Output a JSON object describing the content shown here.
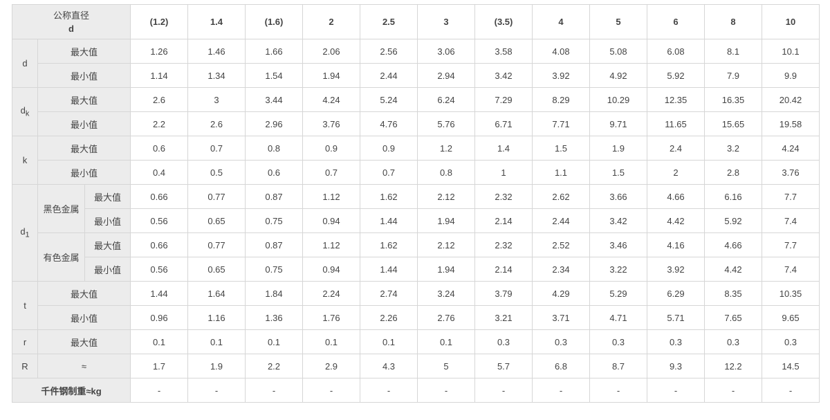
{
  "header": {
    "title": "公称直径",
    "symbol": "d",
    "sizes": [
      "(1.2)",
      "1.4",
      "(1.6)",
      "2",
      "2.5",
      "3",
      "(3.5)",
      "4",
      "5",
      "6",
      "8",
      "10"
    ]
  },
  "labels": {
    "max": "最大值",
    "min": "最小值",
    "approx": "≈",
    "ferrous": "黑色金属",
    "nonferrous": "有色金属",
    "mass": "千件钢制重≈kg",
    "dash": "-"
  },
  "params": {
    "d": "d",
    "dk_main": "d",
    "dk_sub": "k",
    "k": "k",
    "d1_main": "d",
    "d1_sub": "1",
    "t": "t",
    "r": "r",
    "R": "R"
  },
  "rows": {
    "d_max": [
      "1.26",
      "1.46",
      "1.66",
      "2.06",
      "2.56",
      "3.06",
      "3.58",
      "4.08",
      "5.08",
      "6.08",
      "8.1",
      "10.1"
    ],
    "d_min": [
      "1.14",
      "1.34",
      "1.54",
      "1.94",
      "2.44",
      "2.94",
      "3.42",
      "3.92",
      "4.92",
      "5.92",
      "7.9",
      "9.9"
    ],
    "dk_max": [
      "2.6",
      "3",
      "3.44",
      "4.24",
      "5.24",
      "6.24",
      "7.29",
      "8.29",
      "10.29",
      "12.35",
      "16.35",
      "20.42"
    ],
    "dk_min": [
      "2.2",
      "2.6",
      "2.96",
      "3.76",
      "4.76",
      "5.76",
      "6.71",
      "7.71",
      "9.71",
      "11.65",
      "15.65",
      "19.58"
    ],
    "k_max": [
      "0.6",
      "0.7",
      "0.8",
      "0.9",
      "0.9",
      "1.2",
      "1.4",
      "1.5",
      "1.9",
      "2.4",
      "3.2",
      "4.24"
    ],
    "k_min": [
      "0.4",
      "0.5",
      "0.6",
      "0.7",
      "0.7",
      "0.8",
      "1",
      "1.1",
      "1.5",
      "2",
      "2.8",
      "3.76"
    ],
    "d1_f_max": [
      "0.66",
      "0.77",
      "0.87",
      "1.12",
      "1.62",
      "2.12",
      "2.32",
      "2.62",
      "3.66",
      "4.66",
      "6.16",
      "7.7"
    ],
    "d1_f_min": [
      "0.56",
      "0.65",
      "0.75",
      "0.94",
      "1.44",
      "1.94",
      "2.14",
      "2.44",
      "3.42",
      "4.42",
      "5.92",
      "7.4"
    ],
    "d1_n_max": [
      "0.66",
      "0.77",
      "0.87",
      "1.12",
      "1.62",
      "2.12",
      "2.32",
      "2.52",
      "3.46",
      "4.16",
      "4.66",
      "7.7"
    ],
    "d1_n_min": [
      "0.56",
      "0.65",
      "0.75",
      "0.94",
      "1.44",
      "1.94",
      "2.14",
      "2.34",
      "3.22",
      "3.92",
      "4.42",
      "7.4"
    ],
    "t_max": [
      "1.44",
      "1.64",
      "1.84",
      "2.24",
      "2.74",
      "3.24",
      "3.79",
      "4.29",
      "5.29",
      "6.29",
      "8.35",
      "10.35"
    ],
    "t_min": [
      "0.96",
      "1.16",
      "1.36",
      "1.76",
      "2.26",
      "2.76",
      "3.21",
      "3.71",
      "4.71",
      "5.71",
      "7.65",
      "9.65"
    ],
    "r_max": [
      "0.1",
      "0.1",
      "0.1",
      "0.1",
      "0.1",
      "0.1",
      "0.3",
      "0.3",
      "0.3",
      "0.3",
      "0.3",
      "0.3"
    ],
    "R_approx": [
      "1.7",
      "1.9",
      "2.2",
      "2.9",
      "4.3",
      "5",
      "5.7",
      "6.8",
      "8.7",
      "9.3",
      "12.2",
      "14.5"
    ],
    "mass": [
      "-",
      "-",
      "-",
      "-",
      "-",
      "-",
      "-",
      "-",
      "-",
      "-",
      "-",
      "-"
    ]
  },
  "colors": {
    "header_text": "#1f5fa8",
    "label_bg": "#ececec",
    "border": "#d6d6d6",
    "dash": "#e05a3a"
  }
}
